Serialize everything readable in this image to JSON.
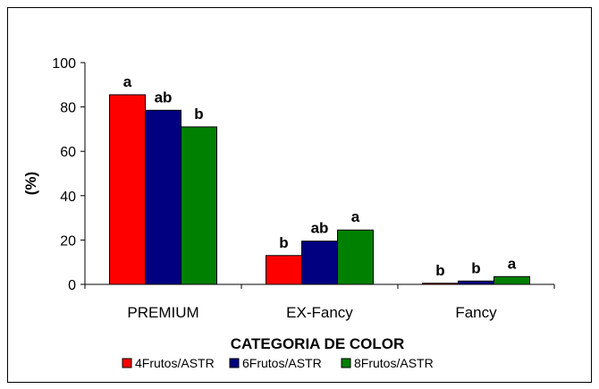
{
  "chart_data": {
    "type": "bar",
    "title": "",
    "xlabel": "CATEGORIA DE COLOR",
    "ylabel": "(%)",
    "ylim": [
      0,
      100
    ],
    "yticks": [
      0,
      20,
      40,
      60,
      80,
      100
    ],
    "grid": false,
    "legend_position": "bottom",
    "categories": [
      "PREMIUM",
      "EX-Fancy",
      "Fancy"
    ],
    "series": [
      {
        "name": "4Frutos/ASTR",
        "color": "#ff0000",
        "values": [
          85.5,
          13,
          0.5
        ],
        "labels": [
          "a",
          "b",
          "b"
        ]
      },
      {
        "name": "6Frutos/ASTR",
        "color": "#000080",
        "values": [
          78.5,
          19.5,
          1.5
        ],
        "labels": [
          "ab",
          "ab",
          "b"
        ]
      },
      {
        "name": "8Frutos/ASTR",
        "color": "#008000",
        "values": [
          71,
          24.5,
          3.5
        ],
        "labels": [
          "b",
          "a",
          "a"
        ]
      }
    ]
  }
}
